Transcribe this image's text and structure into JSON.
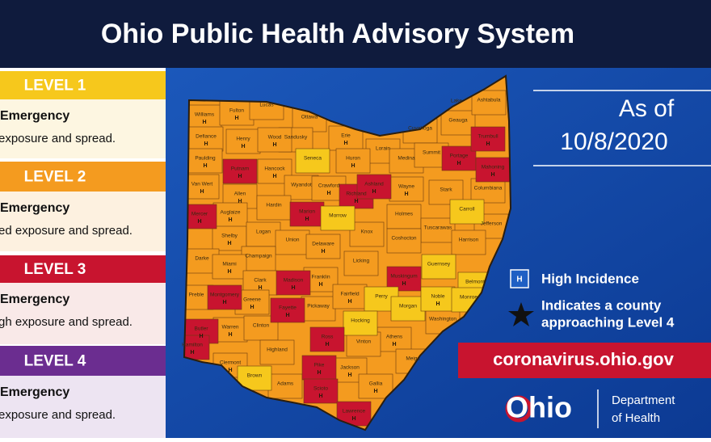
{
  "header": {
    "title": "Ohio Public Health Advisory System"
  },
  "levels": [
    {
      "label": "LEVEL 1",
      "color": "#f6c81c",
      "body": "#fdf6e1",
      "line1": "Emergency",
      "line2": "exposure and spread."
    },
    {
      "label": "LEVEL 2",
      "color": "#f49b1f",
      "body": "#fdf1e0",
      "line1": "Emergency",
      "line2": "ed exposure and spread."
    },
    {
      "label": "LEVEL 3",
      "color": "#c8142f",
      "body": "#f9e9e8",
      "line1": "Emergency",
      "line2": "gh exposure and spread."
    },
    {
      "label": "LEVEL 4",
      "color": "#6b2d90",
      "body": "#ede4f2",
      "line1": "Emergency",
      "line2": "exposure and spread."
    }
  ],
  "date": {
    "line1": "As of",
    "line2": "10/8/2020"
  },
  "legend": {
    "incidence_mark": "H",
    "high_incidence": "High Incidence",
    "star_line1": "Indicates a county",
    "star_line2": "approaching Level 4"
  },
  "website": "coronavirus.ohio.gov",
  "logo": {
    "text": "Ohio",
    "line1": "Department",
    "line2": "of Health"
  },
  "counties": [
    {
      "name": "Williams",
      "level": 2,
      "high": true
    },
    {
      "name": "Fulton",
      "level": 2,
      "high": true
    },
    {
      "name": "Lucas",
      "level": 2,
      "high": false
    },
    {
      "name": "Ottawa",
      "level": 2,
      "high": false
    },
    {
      "name": "Sandusky",
      "level": 2,
      "high": false
    },
    {
      "name": "Erie",
      "level": 2,
      "high": true
    },
    {
      "name": "Lorain",
      "level": 2,
      "high": false
    },
    {
      "name": "Cuyahoga",
      "level": 2,
      "high": false
    },
    {
      "name": "Lake",
      "level": 2,
      "high": false
    },
    {
      "name": "Geauga",
      "level": 2,
      "high": false
    },
    {
      "name": "Ashtabula",
      "level": 2,
      "high": false
    },
    {
      "name": "Defiance",
      "level": 2,
      "high": true
    },
    {
      "name": "Henry",
      "level": 2,
      "high": true
    },
    {
      "name": "Wood",
      "level": 2,
      "high": true
    },
    {
      "name": "Paulding",
      "level": 2,
      "high": true
    },
    {
      "name": "Putnam",
      "level": 3,
      "high": true
    },
    {
      "name": "Hancock",
      "level": 2,
      "high": true
    },
    {
      "name": "Seneca",
      "level": 1,
      "high": false
    },
    {
      "name": "Huron",
      "level": 2,
      "high": true
    },
    {
      "name": "Medina",
      "level": 2,
      "high": false
    },
    {
      "name": "Summit",
      "level": 2,
      "high": false
    },
    {
      "name": "Portage",
      "level": 3,
      "high": true
    },
    {
      "name": "Trumbull",
      "level": 3,
      "high": true
    },
    {
      "name": "Mahoning",
      "level": 3,
      "high": true
    },
    {
      "name": "Van Wert",
      "level": 2,
      "high": true
    },
    {
      "name": "Allen",
      "level": 2,
      "high": true
    },
    {
      "name": "Wyandot",
      "level": 2,
      "high": false
    },
    {
      "name": "Crawford",
      "level": 2,
      "high": true
    },
    {
      "name": "Richland",
      "level": 3,
      "high": true
    },
    {
      "name": "Ashland",
      "level": 3,
      "high": true
    },
    {
      "name": "Wayne",
      "level": 2,
      "high": true
    },
    {
      "name": "Stark",
      "level": 2,
      "high": false
    },
    {
      "name": "Columbiana",
      "level": 2,
      "high": false
    },
    {
      "name": "Mercer",
      "level": 3,
      "high": true
    },
    {
      "name": "Auglaize",
      "level": 2,
      "high": true
    },
    {
      "name": "Hardin",
      "level": 2,
      "high": false
    },
    {
      "name": "Marion",
      "level": 3,
      "high": true
    },
    {
      "name": "Morrow",
      "level": 1,
      "high": false
    },
    {
      "name": "Holmes",
      "level": 2,
      "high": false
    },
    {
      "name": "Carroll",
      "level": 1,
      "high": false
    },
    {
      "name": "Tuscarawas",
      "level": 2,
      "high": false
    },
    {
      "name": "Jefferson",
      "level": 2,
      "high": false
    },
    {
      "name": "Shelby",
      "level": 2,
      "high": true
    },
    {
      "name": "Logan",
      "level": 2,
      "high": false
    },
    {
      "name": "Union",
      "level": 2,
      "high": false
    },
    {
      "name": "Delaware",
      "level": 2,
      "high": true
    },
    {
      "name": "Knox",
      "level": 2,
      "high": false
    },
    {
      "name": "Coshocton",
      "level": 2,
      "high": false
    },
    {
      "name": "Harrison",
      "level": 2,
      "high": false
    },
    {
      "name": "Darke",
      "level": 2,
      "high": false
    },
    {
      "name": "Champaign",
      "level": 2,
      "high": false
    },
    {
      "name": "Miami",
      "level": 2,
      "high": true
    },
    {
      "name": "Licking",
      "level": 2,
      "high": false
    },
    {
      "name": "Guernsey",
      "level": 1,
      "high": false
    },
    {
      "name": "Belmont",
      "level": 1,
      "high": false
    },
    {
      "name": "Clark",
      "level": 2,
      "high": true
    },
    {
      "name": "Franklin",
      "level": 2,
      "high": true
    },
    {
      "name": "Muskingum",
      "level": 3,
      "high": true
    },
    {
      "name": "Preble",
      "level": 2,
      "high": false
    },
    {
      "name": "Montgomery",
      "level": 3,
      "high": true
    },
    {
      "name": "Greene",
      "level": 2,
      "high": true
    },
    {
      "name": "Madison",
      "level": 3,
      "high": true
    },
    {
      "name": "Fayette",
      "level": 3,
      "high": true
    },
    {
      "name": "Pickaway",
      "level": 2,
      "high": false
    },
    {
      "name": "Fairfield",
      "level": 2,
      "high": true
    },
    {
      "name": "Perry",
      "level": 1,
      "high": false
    },
    {
      "name": "Morgan",
      "level": 1,
      "high": false
    },
    {
      "name": "Noble",
      "level": 1,
      "high": true
    },
    {
      "name": "Monroe",
      "level": 1,
      "high": false
    },
    {
      "name": "Washington",
      "level": 2,
      "high": false
    },
    {
      "name": "Butler",
      "level": 3,
      "high": true
    },
    {
      "name": "Warren",
      "level": 2,
      "high": true
    },
    {
      "name": "Clinton",
      "level": 2,
      "high": false
    },
    {
      "name": "Hocking",
      "level": 1,
      "high": false
    },
    {
      "name": "Athens",
      "level": 2,
      "high": true
    },
    {
      "name": "Hamilton",
      "level": 3,
      "high": true
    },
    {
      "name": "Clermont",
      "level": 2,
      "high": true
    },
    {
      "name": "Highland",
      "level": 2,
      "high": false
    },
    {
      "name": "Ross",
      "level": 3,
      "high": true
    },
    {
      "name": "Vinton",
      "level": 2,
      "high": false
    },
    {
      "name": "Meigs",
      "level": 2,
      "high": false
    },
    {
      "name": "Brown",
      "level": 1,
      "high": false
    },
    {
      "name": "Adams",
      "level": 2,
      "high": false
    },
    {
      "name": "Pike",
      "level": 3,
      "high": true
    },
    {
      "name": "Jackson",
      "level": 2,
      "high": true
    },
    {
      "name": "Gallia",
      "level": 2,
      "high": true
    },
    {
      "name": "Scioto",
      "level": 3,
      "high": true
    },
    {
      "name": "Lawrence",
      "level": 3,
      "high": true
    }
  ]
}
